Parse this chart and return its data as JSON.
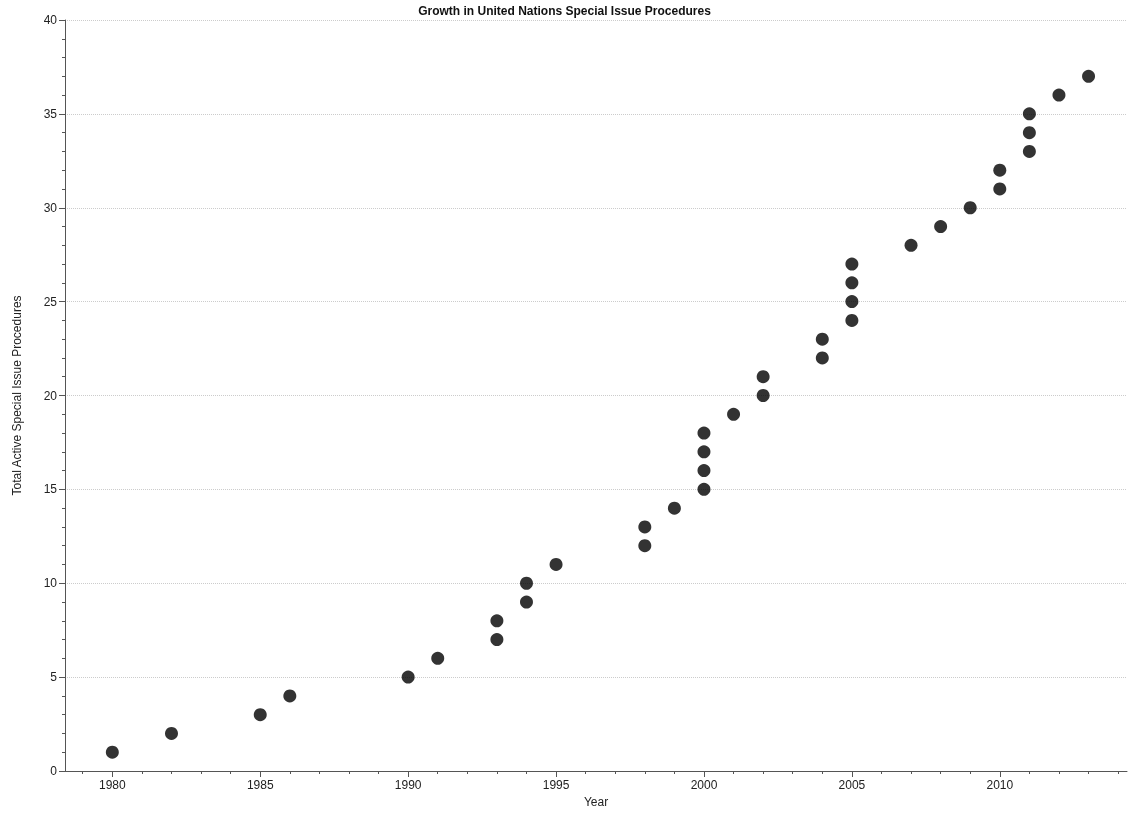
{
  "chart_data": {
    "type": "scatter",
    "title": "Growth in United Nations Special Issue Procedures",
    "xlabel": "Year",
    "ylabel": "Total Active Special Issue Procedures",
    "x": [
      1980,
      1982,
      1985,
      1986,
      1990,
      1991,
      1993,
      1993,
      1994,
      1994,
      1995,
      1998,
      1998,
      1999,
      2000,
      2000,
      2000,
      2000,
      2001,
      2002,
      2002,
      2004,
      2004,
      2005,
      2005,
      2005,
      2005,
      2007,
      2008,
      2009,
      2010,
      2010,
      2011,
      2011,
      2011,
      2012,
      2013
    ],
    "values": [
      1,
      2,
      3,
      4,
      5,
      6,
      7,
      8,
      9,
      10,
      11,
      12,
      13,
      14,
      15,
      16,
      17,
      18,
      19,
      20,
      21,
      22,
      23,
      24,
      25,
      26,
      27,
      28,
      29,
      30,
      31,
      32,
      33,
      34,
      35,
      36,
      37
    ],
    "color": "#000000",
    "marker": "circle",
    "grid": "y",
    "xlim": [
      1978.4,
      2014.3
    ],
    "xticks": [
      {
        "value": 1979,
        "label": null
      },
      1980,
      {
        "value": 1981,
        "label": null
      },
      {
        "value": 1982,
        "label": null
      },
      {
        "value": 1983,
        "label": null
      },
      {
        "value": 1984,
        "label": null
      },
      1985,
      {
        "value": 1986,
        "label": null
      },
      {
        "value": 1987,
        "label": null
      },
      {
        "value": 1988,
        "label": null
      },
      {
        "value": 1989,
        "label": null
      },
      1990,
      {
        "value": 1991,
        "label": null
      },
      {
        "value": 1992,
        "label": null
      },
      {
        "value": 1993,
        "label": null
      },
      {
        "value": 1994,
        "label": null
      },
      1995,
      {
        "value": 1996,
        "label": null
      },
      {
        "value": 1997,
        "label": null
      },
      {
        "value": 1998,
        "label": null
      },
      {
        "value": 1999,
        "label": null
      },
      2000,
      {
        "value": 2001,
        "label": null
      },
      {
        "value": 2002,
        "label": null
      },
      {
        "value": 2003,
        "label": null
      },
      {
        "value": 2004,
        "label": null
      },
      2005,
      {
        "value": 2006,
        "label": null
      },
      {
        "value": 2007,
        "label": null
      },
      {
        "value": 2008,
        "label": null
      },
      {
        "value": 2009,
        "label": null
      },
      2010,
      {
        "value": 2011,
        "label": null
      },
      {
        "value": 2012,
        "label": null
      },
      {
        "value": 2013,
        "label": null
      },
      {
        "value": 2014,
        "label": null
      }
    ],
    "ylim": [
      0,
      40
    ],
    "yticks": [
      0,
      {
        "value": 1,
        "label": null
      },
      {
        "value": 2,
        "label": null
      },
      {
        "value": 3,
        "label": null
      },
      {
        "value": 4,
        "label": null
      },
      5,
      {
        "value": 6,
        "label": null
      },
      {
        "value": 7,
        "label": null
      },
      {
        "value": 8,
        "label": null
      },
      {
        "value": 9,
        "label": null
      },
      10,
      {
        "value": 11,
        "label": null
      },
      {
        "value": 12,
        "label": null
      },
      {
        "value": 13,
        "label": null
      },
      {
        "value": 14,
        "label": null
      },
      15,
      {
        "value": 16,
        "label": null
      },
      {
        "value": 17,
        "label": null
      },
      {
        "value": 18,
        "label": null
      },
      {
        "value": 19,
        "label": null
      },
      20,
      {
        "value": 21,
        "label": null
      },
      {
        "value": 22,
        "label": null
      },
      {
        "value": 23,
        "label": null
      },
      {
        "value": 24,
        "label": null
      },
      25,
      {
        "value": 26,
        "label": null
      },
      {
        "value": 27,
        "label": null
      },
      {
        "value": 28,
        "label": null
      },
      {
        "value": 29,
        "label": null
      },
      30,
      {
        "value": 31,
        "label": null
      },
      {
        "value": 32,
        "label": null
      },
      {
        "value": 33,
        "label": null
      },
      {
        "value": 34,
        "label": null
      },
      35,
      {
        "value": 36,
        "label": null
      },
      {
        "value": 37,
        "label": null
      },
      {
        "value": 38,
        "label": null
      },
      {
        "value": 39,
        "label": null
      },
      40
    ]
  }
}
